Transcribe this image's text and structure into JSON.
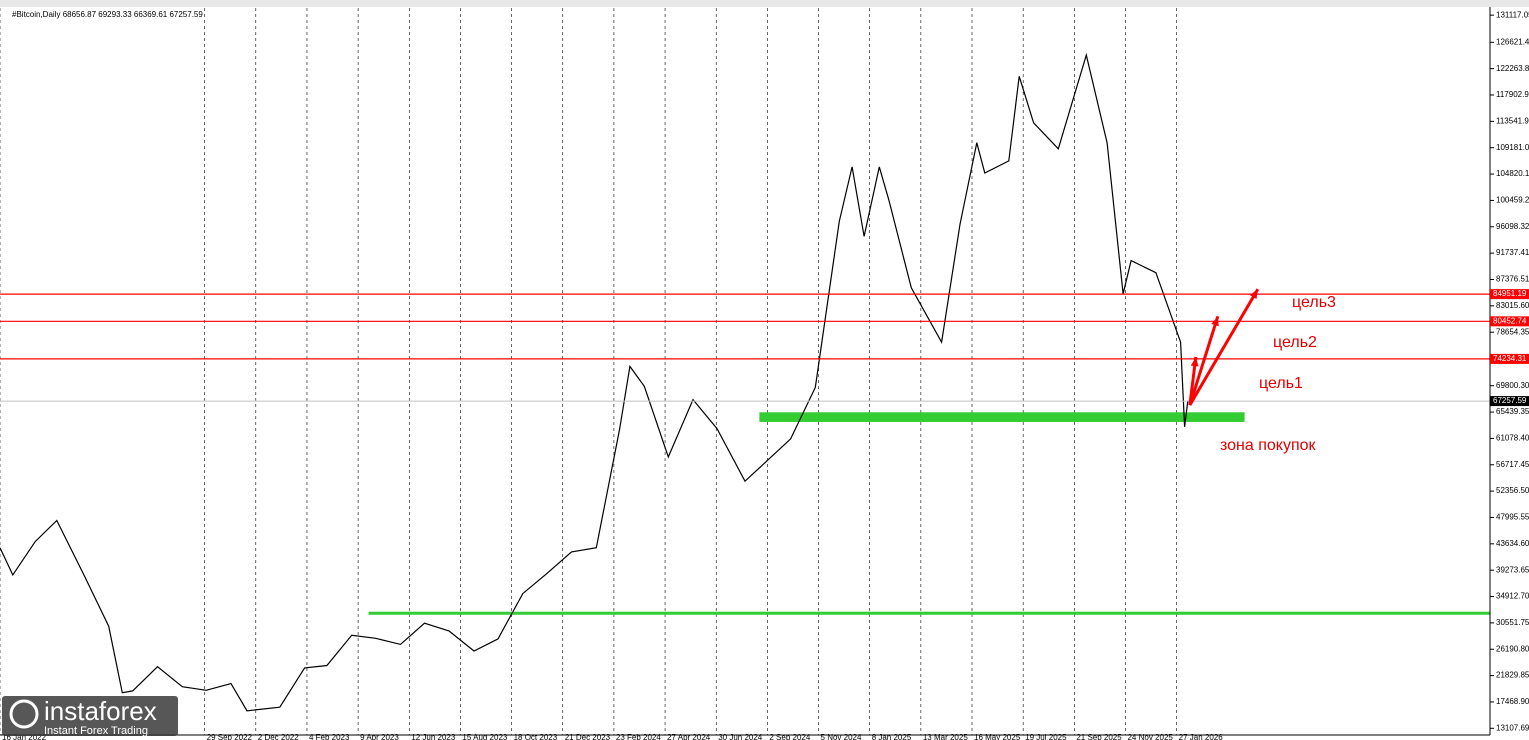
{
  "chart_data": {
    "type": "line",
    "title": "#Bitcoin,Daily  68656.87 69293.33 66369.61 67257.59",
    "series": [
      {
        "name": "Bitcoin",
        "color": "#000000",
        "x": [
          "16 Jan 2022",
          "1 Feb 2022",
          "1 Mar 2022",
          "28 Mar 2022",
          "1 May 2022",
          "1 Jun 2022",
          "18 Jun 2022",
          "1 Jul 2022",
          "1 Aug 2022",
          "1 Sep 2022",
          "1 Oct 2022",
          "1 Nov 2022",
          "21 Nov 2022",
          "1 Jan 2023",
          "1 Feb 2023",
          "1 Mar 2023",
          "1 Apr 2023",
          "1 May 2023",
          "1 Jun 2023",
          "1 Jul 2023",
          "1 Aug 2023",
          "1 Sep 2023",
          "1 Oct 2023",
          "1 Nov 2023",
          "1 Dec 2023",
          "1 Jan 2024",
          "1 Feb 2024",
          "1 Mar 2024",
          "14 Mar 2024",
          "1 Apr 2024",
          "1 May 2024",
          "1 Jun 2024",
          "1 Jul 2024",
          "5 Aug 2024",
          "1 Sep 2024",
          "1 Oct 2024",
          "1 Nov 2024",
          "1 Dec 2024",
          "17 Dec 2024",
          "1 Jan 2025",
          "20 Jan 2025",
          "1 Feb 2025",
          "1 Mar 2025",
          "8 Apr 2025",
          "1 May 2025",
          "22 May 2025",
          "1 Jun 2025",
          "1 Jul 2025",
          "14 Jul 2025",
          "1 Aug 2025",
          "1 Sep 2025",
          "6 Oct 2025",
          "1 Nov 2025",
          "21 Nov 2025",
          "1 Dec 2025",
          "1 Jan 2026",
          "1 Feb 2026",
          "6 Feb 2026",
          "10 Feb 2026"
        ],
        "values": [
          43000,
          38500,
          44000,
          47500,
          38500,
          30000,
          19000,
          19300,
          23300,
          20000,
          19400,
          20500,
          16000,
          16600,
          23100,
          23500,
          28500,
          28000,
          27000,
          30500,
          29200,
          25900,
          27900,
          35400,
          38700,
          42300,
          43000,
          62500,
          73000,
          69700,
          58000,
          67500,
          62700,
          54000,
          57300,
          61000,
          69500,
          97000,
          106000,
          94500,
          106000,
          100500,
          86000,
          77000,
          96500,
          110000,
          105000,
          107000,
          121000,
          113300,
          109000,
          124500,
          110000,
          85000,
          90500,
          88500,
          77000,
          63000,
          67257.59
        ]
      }
    ],
    "xlim": [
      "16 Jan 2022",
      "23 Feb 2027"
    ],
    "xticks": [
      "16 Jan 2022",
      "29 Sep 2022",
      "2 Dec 2022",
      "4 Feb 2023",
      "9 Apr 2023",
      "12 Jun 2023",
      "15 Aug 2023",
      "18 Oct 2023",
      "21 Dec 2023",
      "23 Feb 2024",
      "27 Apr 2024",
      "30 Jun 2024",
      "2 Sep 2024",
      "5 Nov 2024",
      "8 Jan 2025",
      "13 Mar 2025",
      "16 May 2025",
      "19 Jul 2025",
      "21 Sep 2025",
      "24 Nov 2025",
      "27 Jan 2026"
    ],
    "ylim": [
      12000,
      132300
    ],
    "yticks": [
      131117.05,
      126621.45,
      122263.86,
      117902.95,
      113541.95,
      109181.04,
      104820.13,
      100459.23,
      96098.32,
      91737.41,
      87376.51,
      {
        "value": 83015.6,
        "label": "83015.60"
      },
      78654.35,
      {
        "value": 69800.3,
        "label": "69800.30"
      },
      65439.35,
      {
        "value": 61078.4,
        "label": "61078.40"
      },
      56717.45,
      {
        "value": 52356.5,
        "label": "52356.50"
      },
      47995.55,
      {
        "value": 43634.6,
        "label": "43634.60"
      },
      39273.65,
      {
        "value": 34912.7,
        "label": "34912.70"
      },
      30551.75,
      {
        "value": 26190.8,
        "label": "26190.80"
      },
      21829.85,
      {
        "value": 17468.9,
        "label": "17468.90"
      },
      13107.69
    ],
    "levels": [
      {
        "value": 84951.19,
        "color": "#ff0000"
      },
      {
        "value": 80452.74,
        "color": "#ff0000"
      },
      {
        "value": 74234.31,
        "color": "#ff0000"
      }
    ],
    "current_price": {
      "value": 67257.59,
      "color": "#c0c0c0"
    },
    "zones": [
      {
        "from": 63800,
        "to": 65400,
        "start": "23 Aug 2024",
        "end": "22 Apr 2026",
        "color": "#33cc33"
      },
      {
        "from": 31900,
        "to": 32400,
        "start": "22 Apr 2023",
        "end": "23 Feb 2027",
        "color": "#33cc33"
      }
    ],
    "annotations": [
      "цель3",
      "цель2",
      "цель1",
      "зона покупок"
    ],
    "watermark": {
      "brand": "instaforex",
      "tagline": "Instant Forex Trading"
    },
    "grid": true
  }
}
